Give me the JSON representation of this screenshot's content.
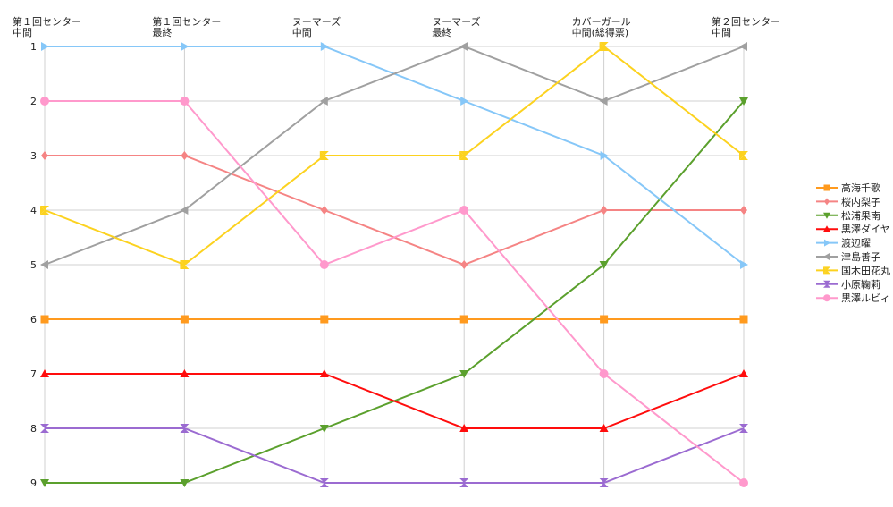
{
  "chart_data": {
    "type": "line",
    "subtype": "bump",
    "title": "",
    "categories": [
      [
        "第１回センター",
        "中間"
      ],
      [
        "第１回センター",
        "最終"
      ],
      [
        "ヌーマーズ",
        "中間"
      ],
      [
        "ヌーマーズ",
        "最終"
      ],
      [
        "カバーガール",
        "中間(総得票)"
      ],
      [
        "第２回センター",
        "中間"
      ]
    ],
    "y_ticks": [
      "1",
      "2",
      "3",
      "4",
      "5",
      "6",
      "7",
      "8",
      "9"
    ],
    "ylim": [
      1,
      9
    ],
    "y_inverted": true,
    "grid": true,
    "legend_position": "right",
    "series": [
      {
        "name": "高海千歌",
        "color": "#ff9a1e",
        "marker": "square",
        "values": [
          6,
          6,
          6,
          6,
          6,
          6
        ]
      },
      {
        "name": "桜内梨子",
        "color": "#f58484",
        "marker": "diamond",
        "values": [
          3,
          3,
          4,
          5,
          4,
          4
        ]
      },
      {
        "name": "松浦果南",
        "color": "#5ba02d",
        "marker": "triangle-down",
        "values": [
          9,
          9,
          8,
          7,
          5,
          2
        ]
      },
      {
        "name": "黒澤ダイヤ",
        "color": "#ff0d0d",
        "marker": "triangle-up",
        "values": [
          7,
          7,
          7,
          8,
          8,
          7
        ]
      },
      {
        "name": "渡辺曜",
        "color": "#86c7f8",
        "marker": "triangle-right",
        "values": [
          1,
          1,
          1,
          2,
          3,
          5
        ]
      },
      {
        "name": "津島善子",
        "color": "#a0a0a0",
        "marker": "triangle-left",
        "values": [
          5,
          4,
          2,
          1,
          2,
          1
        ]
      },
      {
        "name": "国木田花丸",
        "color": "#fcd21f",
        "marker": "bowtie",
        "values": [
          4,
          5,
          3,
          3,
          1,
          3
        ]
      },
      {
        "name": "小原鞠莉",
        "color": "#9b6bd1",
        "marker": "hourglass",
        "values": [
          8,
          8,
          9,
          9,
          9,
          8
        ]
      },
      {
        "name": "黒澤ルビィ",
        "color": "#ff99cc",
        "marker": "circle",
        "values": [
          2,
          2,
          5,
          4,
          7,
          9
        ]
      }
    ]
  }
}
